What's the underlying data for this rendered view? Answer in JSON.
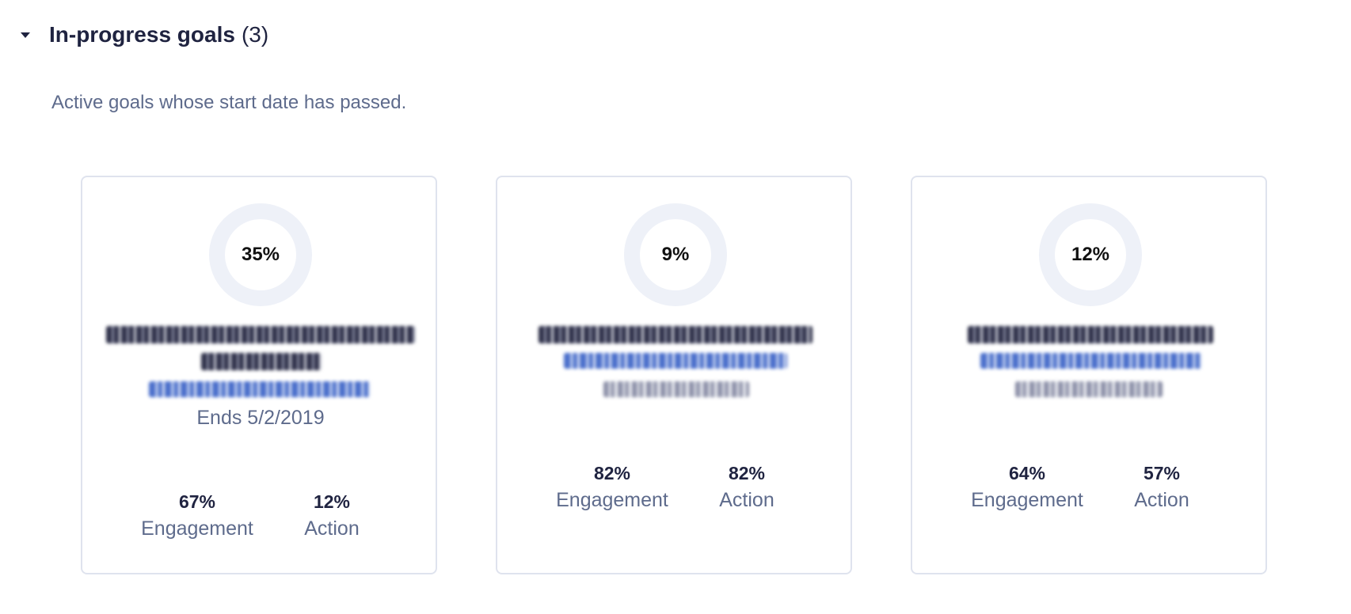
{
  "section": {
    "title": "In-progress goals",
    "count": "(3)",
    "description": "Active goals whose start date has passed."
  },
  "colors": {
    "progress": "#5aa66c",
    "track": "#eef1f8"
  },
  "cards": [
    {
      "progress_percent": 35,
      "progress_label": "35%",
      "ends": "Ends 5/2/2019",
      "engagement_value": "67%",
      "engagement_label": "Engagement",
      "action_value": "12%",
      "action_label": "Action"
    },
    {
      "progress_percent": 9,
      "progress_label": "9%",
      "engagement_value": "82%",
      "engagement_label": "Engagement",
      "action_value": "82%",
      "action_label": "Action"
    },
    {
      "progress_percent": 12,
      "progress_label": "12%",
      "engagement_value": "64%",
      "engagement_label": "Engagement",
      "action_value": "57%",
      "action_label": "Action"
    }
  ]
}
